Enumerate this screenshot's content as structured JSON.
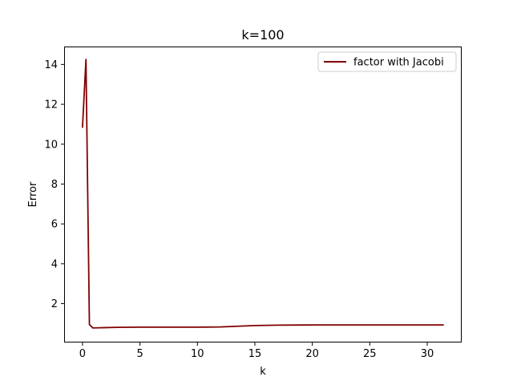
{
  "chart_data": {
    "type": "line",
    "title": "k=100",
    "xlabel": "k",
    "ylabel": "Error",
    "xlim": [
      -1.6,
      33.0
    ],
    "ylim": [
      0.05,
      14.9
    ],
    "xticks": [
      0,
      5,
      10,
      15,
      20,
      25,
      30
    ],
    "yticks": [
      2,
      4,
      6,
      8,
      10,
      12,
      14
    ],
    "xtick_labels": [
      "0",
      "5",
      "10",
      "15",
      "20",
      "25",
      "30"
    ],
    "ytick_labels": [
      "2",
      "4",
      "6",
      "8",
      "10",
      "12",
      "14"
    ],
    "grid": false,
    "legend": {
      "position": "top-right",
      "entries": [
        "factor with Jacobi"
      ]
    },
    "series": [
      {
        "name": "factor with Jacobi",
        "color": "#800000",
        "x": [
          0,
          0.3,
          0.6,
          0.9,
          1.5,
          3,
          5,
          8,
          10,
          12,
          15,
          17,
          20,
          25,
          30,
          31.4
        ],
        "y": [
          10.85,
          14.25,
          0.95,
          0.78,
          0.79,
          0.81,
          0.82,
          0.82,
          0.82,
          0.83,
          0.9,
          0.92,
          0.93,
          0.93,
          0.93,
          0.93
        ]
      }
    ]
  }
}
